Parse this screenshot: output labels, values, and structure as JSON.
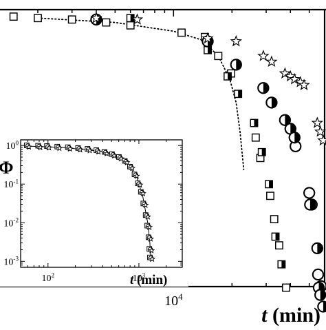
{
  "chart_data": [
    {
      "type": "scatter",
      "role": "main",
      "xscale": "log",
      "yscale": "linear",
      "xlim": [
        1000,
        60000
      ],
      "ylim": [
        0,
        1
      ],
      "grid": false,
      "xtick_labels": [
        {
          "value": 10000,
          "label": "10",
          "exponent": "4"
        }
      ],
      "xlabel": {
        "var": "t",
        "unit": "(min)"
      },
      "series": [
        {
          "marker": "open-star",
          "points": [
            [
              4000,
              0.99
            ],
            [
              6500,
              0.985
            ],
            [
              15000,
              0.92
            ],
            [
              21000,
              0.91
            ],
            [
              29000,
              0.86
            ],
            [
              32000,
              0.84
            ],
            [
              37500,
              0.8
            ],
            [
              40000,
              0.79
            ],
            [
              42000,
              0.78
            ],
            [
              45000,
              0.77
            ],
            [
              47000,
              0.76
            ],
            [
              55000,
              0.63
            ],
            [
              57000,
              0.6
            ],
            [
              59000,
              0.57
            ]
          ]
        },
        {
          "marker": "half-filled-circle",
          "points": [
            [
              4000,
              0.985
            ],
            [
              15000,
              0.91
            ],
            [
              21000,
              0.83
            ],
            [
              29000,
              0.75
            ],
            [
              32000,
              0.7
            ],
            [
              37500,
              0.64
            ],
            [
              40000,
              0.61
            ],
            [
              42000,
              0.58
            ],
            [
              50500,
              0.35
            ],
            [
              55000,
              0.2
            ],
            [
              56000,
              0.065
            ],
            [
              57000,
              0.04
            ],
            [
              59000,
              0.0
            ]
          ]
        },
        {
          "marker": "open-circle",
          "points": [
            [
              42500,
              0.55
            ],
            [
              50000,
              0.39
            ],
            [
              51500,
              0.35
            ],
            [
              55500,
              0.11
            ],
            [
              57500,
              0.07
            ]
          ]
        },
        {
          "marker": "half-filled-square",
          "points": [
            [
              6000,
              0.99
            ],
            [
              15000,
              0.88
            ],
            [
              19000,
              0.79
            ],
            [
              21500,
              0.73
            ],
            [
              26000,
              0.63
            ],
            [
              28500,
              0.53
            ],
            [
              31000,
              0.42
            ],
            [
              33500,
              0.24
            ],
            [
              36000,
              0.145
            ]
          ]
        },
        {
          "marker": "open-square",
          "points": [
            [
              1500,
              0.995
            ],
            [
              2000,
              0.99
            ],
            [
              3000,
              0.985
            ],
            [
              4500,
              0.975
            ],
            [
              6000,
              0.965
            ],
            [
              11000,
              0.94
            ],
            [
              14500,
              0.925
            ],
            [
              17000,
              0.86
            ],
            [
              19800,
              0.8
            ],
            [
              26500,
              0.58
            ],
            [
              28000,
              0.51
            ],
            [
              31500,
              0.38
            ],
            [
              33000,
              0.3
            ],
            [
              35000,
              0.21
            ],
            [
              38000,
              0.065
            ]
          ]
        }
      ],
      "fit_curve": {
        "style": "dotted",
        "points": [
          [
            2000,
            0.99
          ],
          [
            5000,
            0.975
          ],
          [
            10000,
            0.945
          ],
          [
            14000,
            0.915
          ],
          [
            17000,
            0.86
          ],
          [
            19500,
            0.78
          ],
          [
            21000,
            0.7
          ],
          [
            22000,
            0.6
          ],
          [
            23000,
            0.47
          ]
        ]
      }
    },
    {
      "type": "scatter",
      "role": "inset",
      "xscale": "log",
      "yscale": "log",
      "xlim": [
        50,
        3000
      ],
      "ylim": [
        0.0007,
        1.4
      ],
      "grid": false,
      "xtick_labels": [
        {
          "value": 100,
          "label": "10",
          "exponent": "2"
        },
        {
          "value": 1000,
          "label": "10",
          "exponent": "3"
        }
      ],
      "ytick_labels": [
        {
          "value": 1,
          "label": "10",
          "exponent": "0"
        },
        {
          "value": 0.1,
          "label": "10",
          "exponent": "-1"
        },
        {
          "value": 0.01,
          "label": "10",
          "exponent": "-2"
        },
        {
          "value": 0.001,
          "label": "10",
          "exponent": "-3"
        }
      ],
      "xlabel": {
        "var": "t",
        "unit": "(min)"
      },
      "ylabel": "Φ",
      "master_points": [
        [
          60,
          0.96
        ],
        [
          80,
          0.94
        ],
        [
          100,
          0.92
        ],
        [
          130,
          0.89
        ],
        [
          170,
          0.86
        ],
        [
          220,
          0.82
        ],
        [
          280,
          0.78
        ],
        [
          350,
          0.72
        ],
        [
          430,
          0.65
        ],
        [
          520,
          0.57
        ],
        [
          620,
          0.48
        ],
        [
          720,
          0.38
        ],
        [
          820,
          0.27
        ],
        [
          920,
          0.17
        ],
        [
          1000,
          0.1
        ],
        [
          1080,
          0.06
        ],
        [
          1150,
          0.03
        ],
        [
          1220,
          0.015
        ],
        [
          1270,
          0.008
        ],
        [
          1310,
          0.004
        ],
        [
          1340,
          0.002
        ],
        [
          1360,
          0.0012
        ]
      ],
      "curve": [
        [
          55,
          0.97
        ],
        [
          150,
          0.88
        ],
        [
          400,
          0.7
        ],
        [
          700,
          0.42
        ],
        [
          950,
          0.15
        ],
        [
          1100,
          0.05
        ],
        [
          1250,
          0.01
        ],
        [
          1320,
          0.003
        ],
        [
          1360,
          0.001
        ]
      ]
    }
  ]
}
